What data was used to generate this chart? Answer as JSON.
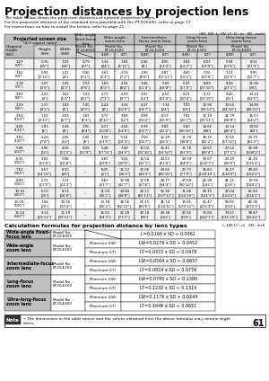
{
  "title": "Projection distances by projection lens",
  "subtitle_lines": [
    "The table below shows the projection distances of optional projection lenses.",
    "For the projection distance of the standard lens provided with the PT-D3500U, refer to page 17.",
    "For instructions on how to install the lenses, refer to page 21."
  ],
  "units_note": "(SH, SW, L, LW, LT, H : m   SD : inch)",
  "col_headers": [
    "Wide-angle\nfixed-focus\nlens",
    "Wide-angle\nzoom lens",
    "Intermediate-\nfocus zoom lens",
    "Long-focus\nzoom lens",
    "Ultra-long-focus\nzoom lens"
  ],
  "model_nos": [
    "ET-DLE050",
    "ET-DLE100",
    "ET-DLE200",
    "ET-DLE300",
    "ET-DLE400"
  ],
  "sub_col_labels": [
    "(L)",
    "(LW)",
    "(LT)",
    "(LW)",
    "(LT)",
    "(LW)",
    "(LT)",
    "(LW)",
    "(LT)"
  ],
  "fixed_col_label": "(L)",
  "rows": [
    {
      "sd": "1.27\n(50\")",
      "sh": "0.76\n[25\"]",
      "sw": "1.02\n[34\"]",
      "l": "0.79\n[27\"]",
      "lw1": "1.34\n[44\"]",
      "lt1": "1.81\n[5'11\"]",
      "lw2": "2.46\n[8']",
      "lt2": "4.05\n[13'3\"]",
      "lw3": "3.84\n[12'7\"]",
      "lt3": "6.03\n[19'9\"]",
      "lw4": "5.94\n[19'5\"]",
      "lt4": "8.31\n[27'3\"]"
    },
    {
      "sd": "1.52\n(60\")",
      "sh": "0.91\n[2'11\"]",
      "sw": "1.22\n[4']",
      "l": "0.96\n[3'1\"]",
      "lw1": "1.61\n[5'3\"]",
      "lt1": "2.19\n[7'2\"]",
      "lw2": "2.96\n[9'8\"]",
      "lt2": "4.87\n[15'11\"]",
      "lw3": "4.60\n[15'2\"]",
      "lt3": "7.26\n[23'9\"]",
      "lw4": "7.11\n[23'3\"]",
      "lt4": "9.95\n[32'7\"]"
    },
    {
      "sd": "1.78\n(70\")",
      "sh": "1.07\n[3'6\"]",
      "sw": "1.42\n[4'7\"]",
      "l": "1.12\n[3'8\"]",
      "lw1": "1.89\n[6'2\"]",
      "lt1": "2.56\n[8'4\"]",
      "lw2": "3.46\n[11'4\"]",
      "lt2": "5.69\n[18'8\"]",
      "lw3": "5.43\n[17'9\"]",
      "lt3": "8.49\n[27'10\"]",
      "lw4": "8.28\n[27'1\"]",
      "lt4": "11.60\n[38']"
    },
    {
      "sd": "2.03\n(80\")",
      "sh": "1.22\n[4']",
      "sw": "1.63\n[5'4\"]",
      "l": "1.29\n[4'2\"]",
      "lw1": "2.17\n[7'1\"]",
      "lt1": "2.93\n[9'7\"]",
      "lw2": "3.97\n[13']",
      "lt2": "6.52\n[21'4\"]",
      "lw3": "6.22\n[20'4\"]",
      "lt3": "9.72\n[31'10\"]",
      "lw4": "9.45\n[31']",
      "lt4": "13.24\n[43'5\"]"
    },
    {
      "sd": "2.29\n(90\")",
      "sh": "1.37\n[4'5\"]",
      "sw": "1.83\n[6']",
      "l": "1.45\n[4'9\"]",
      "lw1": "2.44\n[8']",
      "lt1": "3.30\n[10'9\"]",
      "lw2": "4.47\n[14'7\"]",
      "lt2": "7.34\n[24']",
      "lw3": "7.02\n[23']",
      "lt3": "10.96\n[35'11\"]",
      "lw4": "10.62\n[34'10\"]",
      "lt4": "14.89\n[48'10\"]"
    },
    {
      "sd": "2.54\n(100\")",
      "sh": "1.52\n[4'11\"]",
      "sw": "2.03\n[6'7\"]",
      "l": "1.62\n[5'3\"]",
      "lw1": "2.72\n[8'11\"]",
      "lt1": "3.68\n[12']",
      "lw2": "4.98\n[16'4\"]",
      "lt2": "8.17\n[26'9\"]",
      "lw3": "7.81\n[25'7\"]",
      "lt3": "12.19\n[39'11\"]",
      "lw4": "11.79\n[38'8\"]",
      "lt4": "16.53\n[54'2\"]"
    },
    {
      "sd": "3.05\n(120\")",
      "sh": "1.83\n[6']",
      "sw": "2.44\n[8']",
      "l": "1.95\n[6'4\"]",
      "lw1": "3.27\n[10'8\"]",
      "lt1": "4.42\n[14'6\"]",
      "lw2": "5.99\n[19'7\"]",
      "lt2": "9.82\n[32'2\"]",
      "lw3": "9.40\n[30'10\"]",
      "lt3": "14.65\n[48']",
      "lw4": "14.14\n[46'4\"]",
      "lt4": "19.82\n[65']"
    },
    {
      "sd": "3.81\n(150\")",
      "sh": "2.29\n[7'6\"]",
      "sw": "3.05\n[10']",
      "l": "2.45\n[8']",
      "lw1": "4.10\n[13'5\"]",
      "lt1": "5.54\n[18'2\"]",
      "lw2": "7.50\n[24'7\"]",
      "lt2": "12.29\n[40'3\"]",
      "lw3": "11.79\n[38'8\"]",
      "lt3": "18.35\n[60'2\"]",
      "lw4": "17.65\n[57'10\"]",
      "lt4": "24.75\n[81'2\"]"
    },
    {
      "sd": "5.08\n(200\")",
      "sh": "3.05\n[10']",
      "sw": "4.06\n[13'3\"]",
      "l": "3.28\n[10'9\"]",
      "lw1": "5.48\n[17'11\"]",
      "lt1": "7.40\n[24'3\"]",
      "lw2": "10.02\n[32'10\"]",
      "lt2": "16.41\n[53'10\"]",
      "lw3": "15.78\n[51'9\"]",
      "lt3": "24.51\n[80'4\"]",
      "lw4": "23.52\n[77'1\"]",
      "lt4": "32.99\n[108'2\"]"
    },
    {
      "sd": "6.35\n(250\")",
      "sh": "3.81\n[12'6\"]",
      "sw": "5.08\n[16'8\"]",
      "l": "--",
      "lw1": "6.87\n[22'6\"]",
      "lt1": "9.26\n[30'4\"]",
      "lw2": "12.54\n[41'1\"]",
      "lt2": "20.53\n[67'4\"]",
      "lw3": "19.74\n[64'9\"]",
      "lt3": "30.67\n[100'7\"]",
      "lw4": "29.39\n[96'5\"]",
      "lt4": "41.20\n[135'2\"]"
    },
    {
      "sd": "7.62\n(300\")",
      "sh": "4.57\n[14'11\"]",
      "sw": "6.10\n[20']",
      "l": "--",
      "lw1": "8.25\n[27']",
      "lt1": "11.12\n[36'5\"]",
      "lw2": "15.06\n[49'4\"]",
      "lt2": "24.65\n[80'10\"]",
      "lw3": "23.71\n[77'9\"]",
      "lt3": "36.83\n[120'10\"]",
      "lw4": "35.27\n[115'8\"]",
      "lt4": "49.43\n[162'2\"]"
    },
    {
      "sd": "8.89\n(350\")",
      "sh": "5.33\n[17'5\"]",
      "sw": "7.11\n[23'3\"]",
      "l": "--",
      "lw1": "9.63\n[31'7\"]",
      "lt1": "12.98\n[42'7\"]",
      "lw2": "17.58\n[57'8\"]",
      "lt2": "28.77\n[94'4\"]",
      "lw3": "27.69\n[90'10\"]",
      "lt3": "42.99\n[141']",
      "lw4": "41.15\n[135']",
      "lt4": "57.66\n[189'2\"]"
    },
    {
      "sd": "10.16\n(400\")",
      "sh": "6.10\n[20']",
      "sw": "8.13\n[26'8\"]",
      "l": "--",
      "lw1": "11.02\n[36'1\"]",
      "lt1": "14.84\n[48'8\"]",
      "lw2": "20.11\n[65'11\"]",
      "lt2": "32.90\n[107'11\"]",
      "lw3": "31.66\n[103'10\"]",
      "lt3": "49.15\n[161'3\"]",
      "lw4": "47.04\n[154'3\"]",
      "lt4": "65.90\n[216'2\"]"
    },
    {
      "sd": "12.70\n(500\")",
      "sh": "7.62\n[25']",
      "sw": "10.16\n[33'4\"]",
      "l": "--",
      "lw1": "13.78\n[45'2\"]",
      "lt1": "18.56\n[60'10\"]",
      "lw2": "25.15\n[82'6\"]",
      "lt2": "41.14\n[134'11\"]",
      "lw3": "39.61\n[129'11\"]",
      "lt3": "61.47\n[201'8\"]",
      "lw4": "58.65\n[193']",
      "lt4": "82.36\n[270'3\"]"
    },
    {
      "sd": "15.24\n(600\")",
      "sh": "9.14\n[29'11\"]",
      "sw": "12.19\n[39'11\"]",
      "l": "--",
      "lw1": "16.55\n[54'3\"]",
      "lt1": "22.28\n[73'1\"]",
      "lw2": "30.18\n[99']",
      "lt2": "49.38\n[162']",
      "lw3": "47.56\n[156']",
      "lt3": "73.80\n[242'1\"]",
      "lw4": "70.67\n[231'10\"]",
      "lt4": "98.87\n[324'4\"]"
    }
  ],
  "formulas": [
    {
      "lens": "Wide-angle fixed-\nfocus lens",
      "model": "ET-DLE050",
      "type": "",
      "formula": "L=0.0166 x SD − 0.0361"
    },
    {
      "lens": "Wide-angle\nzoom lens",
      "model": "ET-DLE100",
      "type_min": "Minimum (LW)",
      "type_max": "Maximum (LT)",
      "formula_min": "LW=0.0276 x SD − 0.0452",
      "formula_max": "LT=0.0372 x SD − 0.0478"
    },
    {
      "lens": "Intermediate-focus\nzoom lens",
      "model": "ET-DLE200",
      "type_min": "Minimum (LW)",
      "type_max": "Maximum (LT)",
      "formula_min": "LW=0.0504 x SD − 0.0657",
      "formula_max": "LT=0.0824 x SD − 0.0756"
    },
    {
      "lens": "Long-focus\nzoom lens",
      "model": "ET-DLE300",
      "type_min": "Minimum (LW)",
      "type_max": "Maximum (LT)",
      "formula_min": "LW=0.0795 x SD − 0.1380",
      "formula_max": "LT=0.1232 x SD − 0.1310"
    },
    {
      "lens": "Ultra-long-focus\nzoom lens",
      "model": "ET-DLE400",
      "type_min": "Minimum (LW)",
      "type_max": "Maximum (LT)",
      "formula_min": "LW=0.1176 x SD + 0.0244",
      "formula_max": "LT=0.1646 x SD − 0.0651"
    }
  ],
  "note_text": "The dimensions in the table above and the values obtained from the above formulas may contain slight\nerrors.",
  "page_number": "61",
  "bg_color": "#ffffff",
  "header_bg": "#c8c8c8",
  "row_alt_bg": "#e8e8e8",
  "table_border": "#000000"
}
